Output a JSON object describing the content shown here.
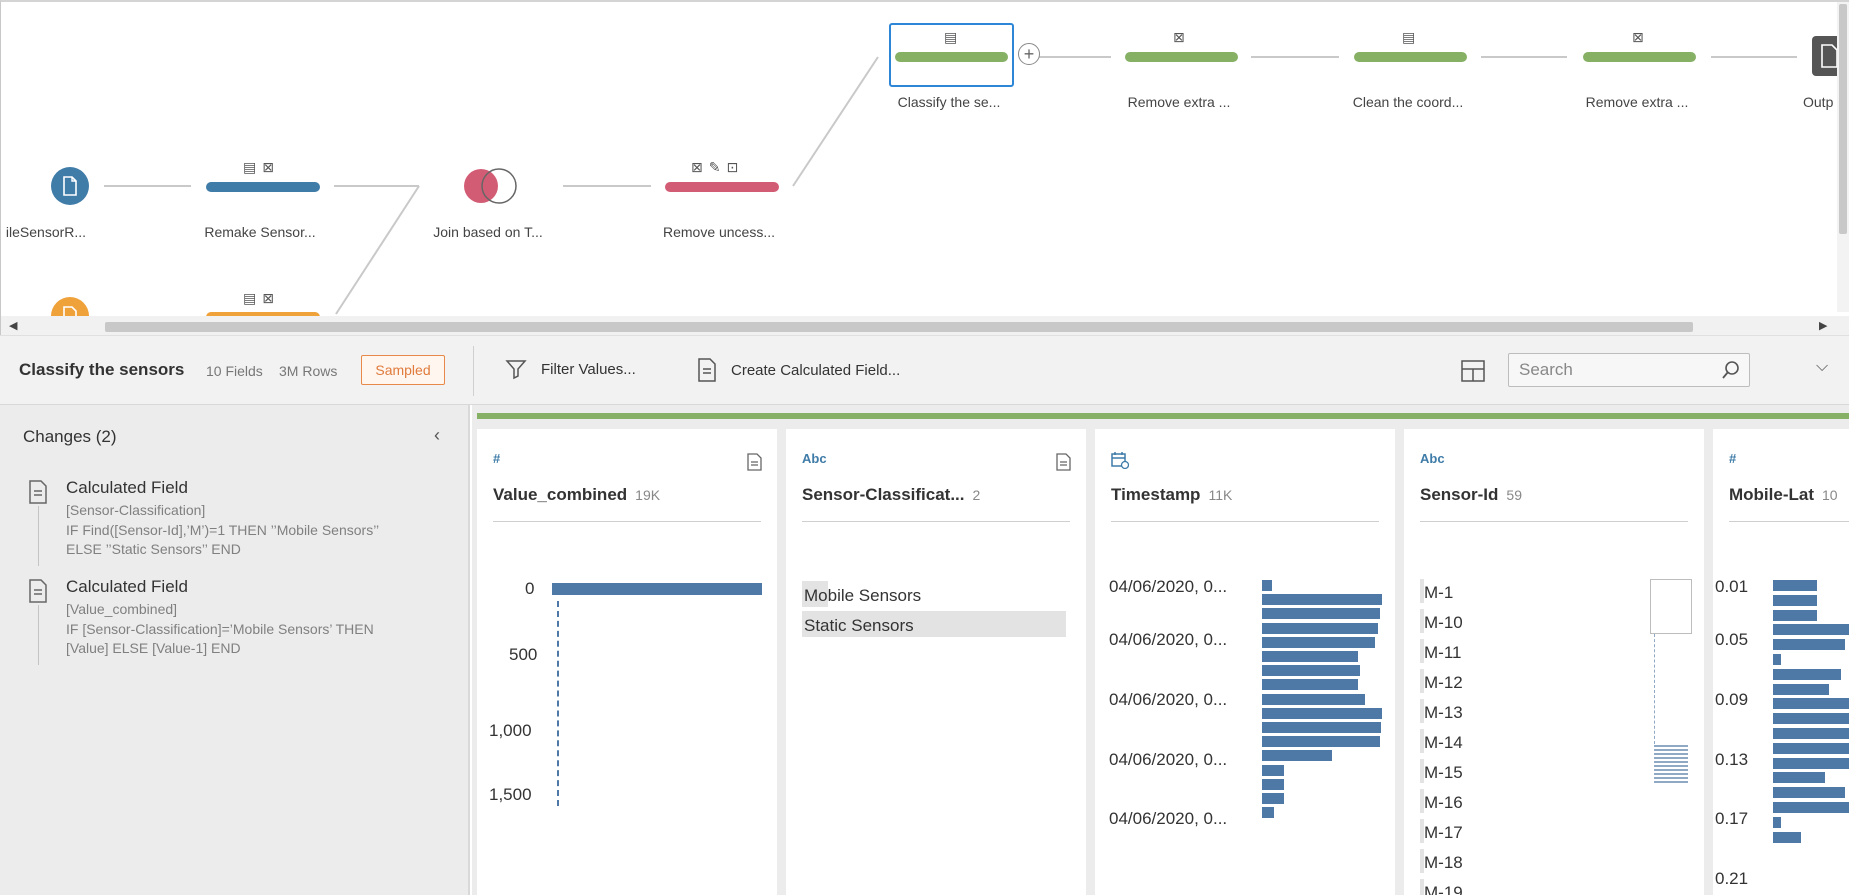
{
  "flow": {
    "nodes": {
      "input1_label": "ileSensorR...",
      "remake_label": "Remake Sensor...",
      "join_label": "Join based on T...",
      "remove_unc_label": "Remove uncess...",
      "classify_label": "Classify the se...",
      "remove_extra1_label": "Remove extra ...",
      "clean_coord_label": "Clean the coord...",
      "remove_extra2_label": "Remove extra ...",
      "output_label": "Outp"
    },
    "colors": {
      "green": "#86b064",
      "blue": "#3f7ca8",
      "red": "#d35c75",
      "orange": "#f0a23a",
      "selected": "#2e86d6"
    }
  },
  "toolbar": {
    "step_title": "Classify the sensors",
    "fields": "10 Fields",
    "rows": "3M Rows",
    "sampled": "Sampled",
    "filter_values": "Filter Values...",
    "create_calc": "Create Calculated Field...",
    "search_placeholder": "Search"
  },
  "changes": {
    "title": "Changes (2)",
    "items": [
      {
        "title": "Calculated Field",
        "field": "[Sensor-Classification]",
        "expr": "IF Find([Sensor-Id],’M’)=1 THEN ’’Mobile Sensors’’ ELSE ’’Static Sensors’’ END"
      },
      {
        "title": "Calculated Field",
        "field": "[Value_combined]",
        "expr": "IF [Sensor-Classification]=’Mobile Sensors’ THEN [Value] ELSE [Value-1] END"
      }
    ]
  },
  "profile": {
    "cards": [
      {
        "type": "#",
        "name": "Value_combined",
        "count": "19K",
        "ticks": [
          "0",
          "500",
          "1,000",
          "1,500"
        ]
      },
      {
        "type": "Abc",
        "name": "Sensor-Classificat...",
        "count": "2",
        "values": [
          "Mobile Sensors",
          "Static Sensors"
        ]
      },
      {
        "type": "date",
        "name": "Timestamp",
        "count": "11K",
        "ticks": [
          "04/06/2020, 0...",
          "04/06/2020, 0...",
          "04/06/2020, 0...",
          "04/06/2020, 0...",
          "04/06/2020, 0..."
        ],
        "bar_fractions": [
          0.08,
          1.0,
          0.98,
          0.97,
          0.94,
          0.8,
          0.82,
          0.8,
          0.86,
          1.0,
          0.99,
          0.98,
          0.58,
          0.18,
          0.18,
          0.18,
          0.1
        ]
      },
      {
        "type": "Abc",
        "name": "Sensor-Id",
        "count": "59",
        "values": [
          "M-1",
          "M-10",
          "M-11",
          "M-12",
          "M-13",
          "M-14",
          "M-15",
          "M-16",
          "M-17",
          "M-18",
          "M-19"
        ]
      },
      {
        "type": "#",
        "name": "Mobile-Lat",
        "count": "10",
        "ticks": [
          "0.01",
          "0.05",
          "0.09",
          "0.13",
          "0.17",
          "0.21"
        ],
        "bar_fractions": [
          0.55,
          0.55,
          0.55,
          1.0,
          0.9,
          0.1,
          0.85,
          0.7,
          1.0,
          1.0,
          1.0,
          1.0,
          1.0,
          0.65,
          0.9,
          1.0,
          0.1,
          0.35
        ]
      }
    ]
  }
}
